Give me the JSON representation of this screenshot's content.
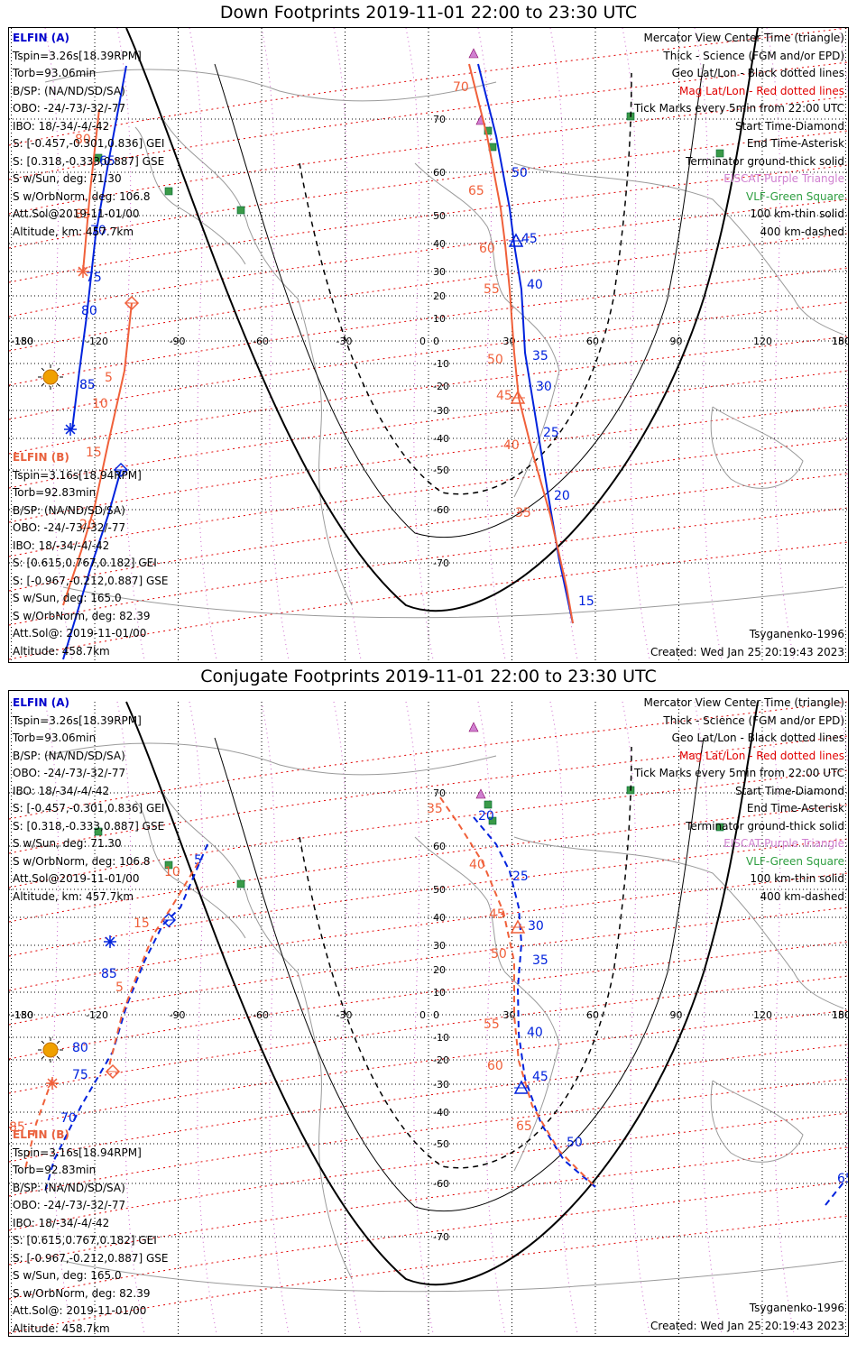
{
  "panels": [
    {
      "title": "Down Footprints 2019-11-01 22:00 to 23:30 UTC",
      "elfin_a": {
        "header": "ELFIN (A)",
        "lines": [
          "Tspin=3.26s[18.39RPM]",
          "Torb=93.06min",
          "B/SP: (NA/ND/SD/SA)",
          "OBO: -24/-73/-32/-77",
          "IBO: 18/-34/-4/-42",
          "S: [-0.457,-0.301,0.836] GEI",
          "S: [0.318,-0.333,0.887] GSE",
          "S w/Sun, deg: 71.30",
          "S w/OrbNorm, deg: 106.8",
          "Att.Sol@2019-11-01/00",
          "Altitude, km: 457.7km"
        ]
      },
      "elfin_b": {
        "header": "ELFIN (B)",
        "lines": [
          "Tspin=3.16s[18.94RPM]",
          "Torb=92.83min",
          "B/SP: (NA/ND/SD/SA)",
          "OBO: -24/-73/-32/-77",
          "IBO: 18/-34/-4/-42",
          "S: [0.615,0.767,0.182] GEI",
          "S: [-0.967,-0.212,0.887] GSE",
          "S w/Sun, deg: 165.0",
          "S w/OrbNorm, deg: 82.39",
          "Att.Sol@: 2019-11-01/00",
          "Altitude: 458.7km"
        ]
      },
      "footer_left": "",
      "footer_model": "Tsyganenko-1996",
      "footer_created": "Created: Wed Jan 25 20:19:43 2023"
    },
    {
      "title": "Conjugate Footprints 2019-11-01 22:00 to 23:30 UTC",
      "elfin_a": {
        "header": "ELFIN (A)",
        "lines": [
          "Tspin=3.26s[18.39RPM]",
          "Torb=93.06min",
          "B/SP: (NA/ND/SD/SA)",
          "OBO: -24/-73/-32/-77",
          "IBO: 18/-34/-4/-42",
          "S: [-0.457,-0.301,0.836] GEI",
          "S: [0.318,-0.333,0.887] GSE",
          "S w/Sun, deg: 71.30",
          "S w/OrbNorm, deg: 106.8",
          "Att.Sol@2019-11-01/00",
          "Altitude, km: 457.7km"
        ]
      },
      "elfin_b": {
        "header": "ELFIN (B)",
        "lines": [
          "Tspin=3.16s[18.94RPM]",
          "Torb=92.83min",
          "B/SP: (NA/ND/SD/SA)",
          "OBO: -24/-73/-32/-77",
          "IBO: 18/-34/-4/-42",
          "S: [0.615,0.767,0.182] GEI",
          "S: [-0.967,-0.212,0.887] GSE",
          "S w/Sun, deg: 165.0",
          "S w/OrbNorm, deg: 82.39",
          "Att.Sol@: 2019-11-01/00",
          "Altitude: 458.7km"
        ]
      },
      "footer_model": "Tsyganenko-1996",
      "footer_created": "Created: Wed Jan 25 20:19:43 2023"
    }
  ],
  "legend": [
    {
      "text": "Mercator View Center Time (triangle)",
      "color": "#000000"
    },
    {
      "text": "Thick - Science (FGM and/or EPD)",
      "color": "#000000"
    },
    {
      "text": "Geo Lat/Lon - Black dotted lines",
      "color": "#000000"
    },
    {
      "text": "Mag Lat/Lon - Red dotted lines",
      "color": "#e00000"
    },
    {
      "text": "Tick Marks every 5min from 22:00 UTC",
      "color": "#000000"
    },
    {
      "text": "Start Time-Diamond",
      "color": "#000000"
    },
    {
      "text": "End Time-Asterisk",
      "color": "#000000"
    },
    {
      "text": "Terminator ground-thick solid",
      "color": "#000000"
    },
    {
      "text": "EISCAT-Purple Triangle",
      "color": "#d080d0"
    },
    {
      "text": "VLF-Green Square",
      "color": "#2e9e40"
    },
    {
      "text": "100 km-thin solid",
      "color": "#000000"
    },
    {
      "text": "400 km-dashed",
      "color": "#000000"
    }
  ],
  "axis": {
    "lon_labels": [
      "-180",
      "-150",
      "-120",
      "-90",
      "-60",
      "-30",
      "0",
      "30",
      "60",
      "90",
      "120",
      "150",
      "180"
    ],
    "lat_labels": [
      "70",
      "60",
      "50",
      "40",
      "30",
      "20",
      "10",
      "0",
      "-10",
      "-20",
      "-30",
      "-40",
      "-50",
      "-60",
      "-70"
    ]
  },
  "colors": {
    "elfin_a": "#0022dd",
    "elfin_b": "#f0603a",
    "mag_grid": "#e00000",
    "eiscat": "#d080d0",
    "vlf": "#3a9a48"
  },
  "down_tracks": {
    "a_labels": [
      "50",
      "45",
      "40",
      "35",
      "30",
      "25",
      "20",
      "15",
      "65",
      "70",
      "75",
      "80",
      "85"
    ],
    "b_labels": [
      "70",
      "65",
      "60",
      "55",
      "50",
      "45",
      "40",
      "35",
      "80",
      "85",
      "5",
      "10",
      "15",
      "20",
      "25"
    ]
  },
  "conj_tracks": {
    "a_labels": [
      "20",
      "25",
      "30",
      "35",
      "40",
      "45",
      "50",
      "55",
      "60",
      "65",
      "70",
      "75",
      "80",
      "85",
      "5",
      "10",
      "15"
    ],
    "b_labels": [
      "35",
      "40",
      "45",
      "50",
      "55",
      "60",
      "65",
      "10",
      "5",
      "15",
      "85"
    ]
  }
}
